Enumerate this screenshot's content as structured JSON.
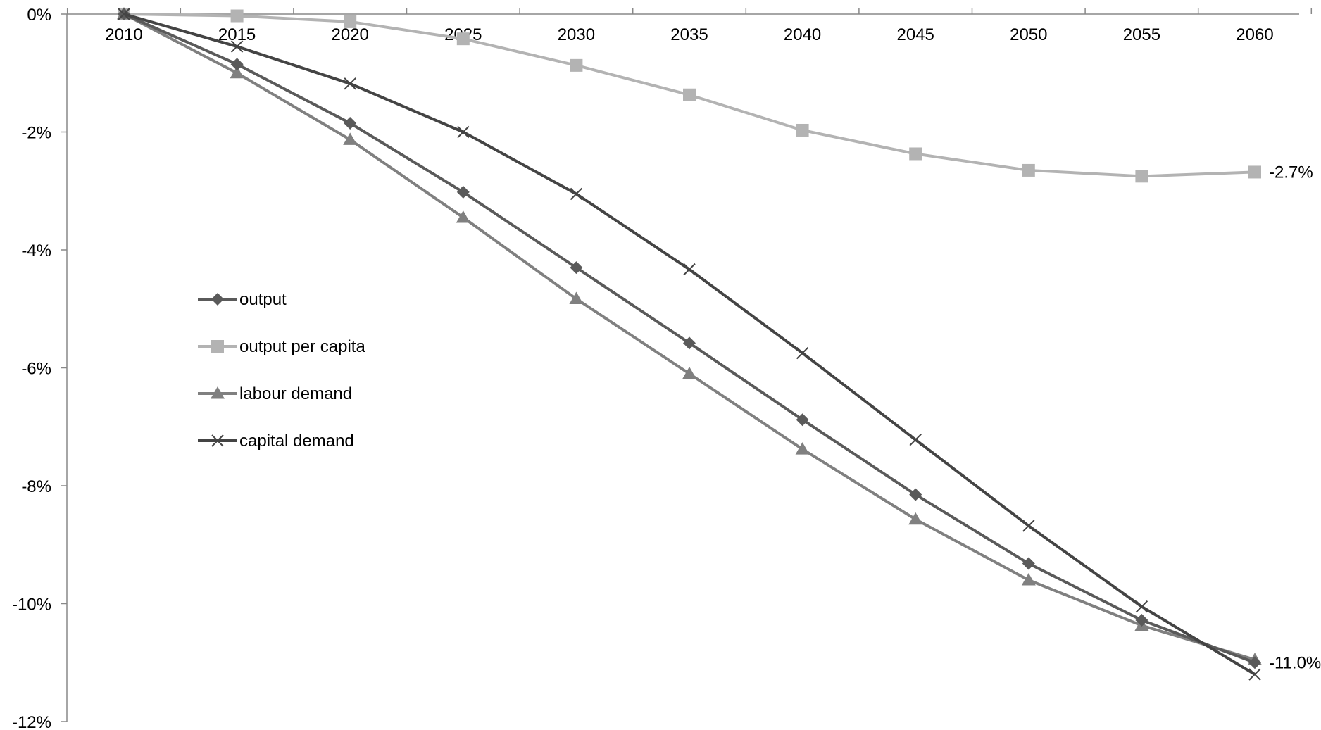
{
  "chart_data": {
    "type": "line",
    "title": "",
    "xlabel": "",
    "ylabel": "",
    "x": [
      "2010",
      "2015",
      "2020",
      "2025",
      "2030",
      "2035",
      "2040",
      "2045",
      "2050",
      "2055",
      "2060"
    ],
    "ylim": [
      -12,
      0
    ],
    "y_ticks": [
      0,
      -2,
      -4,
      -6,
      -8,
      -10,
      -12
    ],
    "y_tick_labels": [
      "0%",
      "-2%",
      "-4%",
      "-6%",
      "-8%",
      "-10%",
      "-12%"
    ],
    "grid": false,
    "legend_position": "center-left",
    "series": [
      {
        "name": "output",
        "color": "#5a5a5a",
        "marker": "diamond",
        "values": [
          0,
          -0.85,
          -1.85,
          -3.02,
          -4.3,
          -5.58,
          -6.88,
          -8.15,
          -9.32,
          -10.28,
          -11.0
        ]
      },
      {
        "name": "output per capita",
        "color": "#b3b3b3",
        "marker": "square",
        "values": [
          0,
          -0.03,
          -0.13,
          -0.42,
          -0.87,
          -1.37,
          -1.97,
          -2.37,
          -2.65,
          -2.75,
          -2.68
        ]
      },
      {
        "name": "labour demand",
        "color": "#808080",
        "marker": "triangle",
        "values": [
          0,
          -1.0,
          -2.13,
          -3.45,
          -4.83,
          -6.1,
          -7.38,
          -8.57,
          -9.6,
          -10.37,
          -10.95
        ]
      },
      {
        "name": "capital demand",
        "color": "#444444",
        "marker": "x",
        "values": [
          0,
          -0.55,
          -1.18,
          -2.0,
          -3.05,
          -4.33,
          -5.75,
          -7.22,
          -8.68,
          -10.05,
          -11.2
        ]
      }
    ],
    "annotations": [
      {
        "series": "output per capita",
        "text": "-2.7%"
      },
      {
        "series": "output",
        "text": "-11.0%"
      }
    ]
  }
}
